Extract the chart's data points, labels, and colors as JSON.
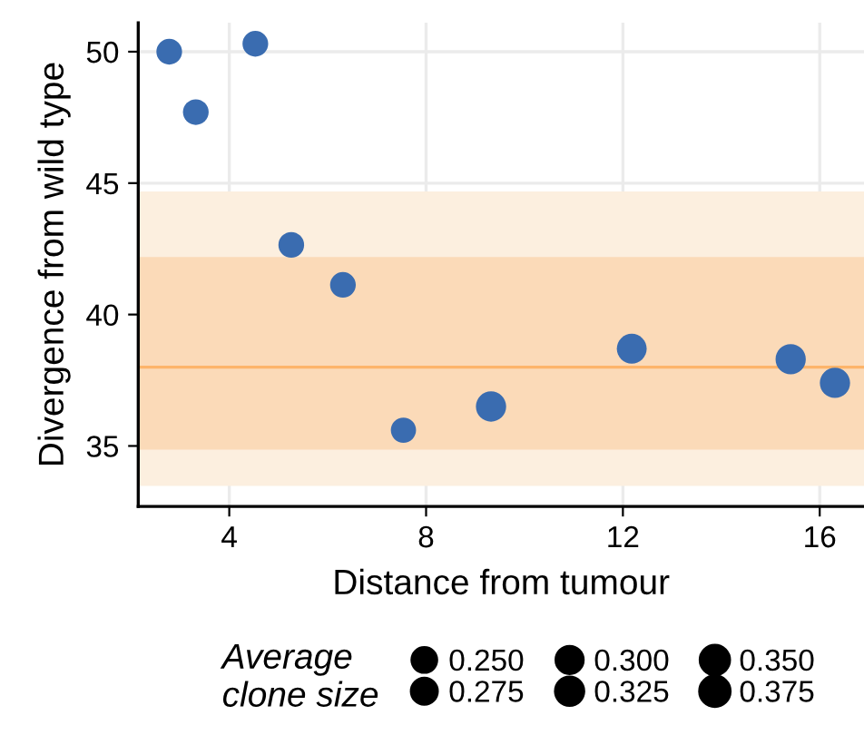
{
  "chart_data": {
    "type": "bubble",
    "xlabel": "Distance from tumour",
    "ylabel": "Divergence from wild type",
    "legend_title": "Average\nclone size",
    "x": [
      2.78,
      3.32,
      4.53,
      5.26,
      6.31,
      7.54,
      9.32,
      12.18,
      15.41,
      16.31
    ],
    "values": [
      50.0,
      47.7,
      50.3,
      42.65,
      41.13,
      35.6,
      36.5,
      38.7,
      38.3,
      37.4
    ],
    "sizes": [
      0.26,
      0.26,
      0.26,
      0.26,
      0.26,
      0.25,
      0.36,
      0.35,
      0.36,
      0.36
    ],
    "size_legend": [
      {
        "value": 0.25,
        "label": "0.250"
      },
      {
        "value": 0.275,
        "label": "0.275"
      },
      {
        "value": 0.3,
        "label": "0.300"
      },
      {
        "value": 0.325,
        "label": "0.325"
      },
      {
        "value": 0.35,
        "label": "0.350"
      },
      {
        "value": 0.375,
        "label": "0.375"
      }
    ],
    "color": "#3a6cb0",
    "xlim": [
      2.15,
      16.9
    ],
    "xticks": [
      4,
      8,
      12,
      16
    ],
    "ylim": [
      32.7,
      51.1
    ],
    "yticks": [
      35,
      40,
      45,
      50
    ],
    "grid": true,
    "bands": [
      {
        "axis": "y",
        "from": 33.48,
        "to": 44.68,
        "color": "#fcefdf"
      },
      {
        "axis": "y",
        "from": 34.86,
        "to": 42.19,
        "color": "#fbdab8"
      }
    ],
    "ref_lines": [
      {
        "axis": "y",
        "value": 38.0,
        "color": "#fdb46a"
      }
    ]
  }
}
